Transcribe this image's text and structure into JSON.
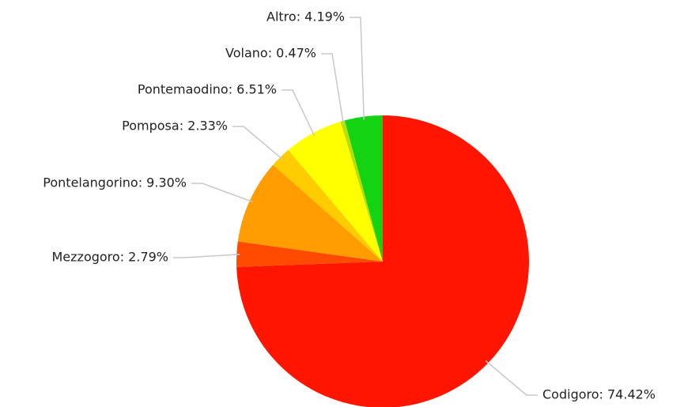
{
  "chart_data": {
    "type": "pie",
    "values": [
      74.42,
      2.79,
      9.3,
      2.33,
      6.51,
      0.47,
      4.19
    ],
    "value_labels": [
      "Codigoro: 74.42%",
      "Mezzogoro: 2.79%",
      "Pontelangorino: 9.30%",
      "Pomposa: 2.33%",
      "Pontemaodino: 6.51%",
      "Volano: 0.47%",
      "Altro: 4.19%"
    ],
    "colors": [
      "#ff1500",
      "#ff4a00",
      "#ff9c00",
      "#ffcc00",
      "#ffff00",
      "#b5e000",
      "#13d313"
    ]
  }
}
